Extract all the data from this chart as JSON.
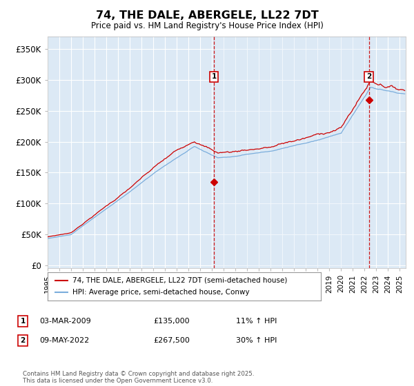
{
  "title": "74, THE DALE, ABERGELE, LL22 7DT",
  "subtitle": "Price paid vs. HM Land Registry's House Price Index (HPI)",
  "ylabel_ticks": [
    "£0",
    "£50K",
    "£100K",
    "£150K",
    "£200K",
    "£250K",
    "£300K",
    "£350K"
  ],
  "ytick_vals": [
    0,
    50000,
    100000,
    150000,
    200000,
    250000,
    300000,
    350000
  ],
  "ylim": [
    -5000,
    370000
  ],
  "xlim_start": 1995.0,
  "xlim_end": 2025.5,
  "sale1_x": 2009.17,
  "sale1_y": 135000,
  "sale2_x": 2022.36,
  "sale2_y": 267500,
  "sale1_label": "1",
  "sale1_date": "03-MAR-2009",
  "sale1_price": "£135,000",
  "sale1_hpi": "11% ↑ HPI",
  "sale2_label": "2",
  "sale2_date": "09-MAY-2022",
  "sale2_price": "£267,500",
  "sale2_hpi": "30% ↑ HPI",
  "line1_label": "74, THE DALE, ABERGELE, LL22 7DT (semi-detached house)",
  "line2_label": "HPI: Average price, semi-detached house, Conwy",
  "line1_color": "#cc0000",
  "line2_color": "#7aaddc",
  "shade_color": "#dce9f5",
  "plot_bg": "#dce9f5",
  "grid_color": "#ffffff",
  "vline_color": "#cc0000",
  "marker_box_color": "#cc0000",
  "marker_y": 305000,
  "copyright": "Contains HM Land Registry data © Crown copyright and database right 2025.\nThis data is licensed under the Open Government Licence v3.0."
}
